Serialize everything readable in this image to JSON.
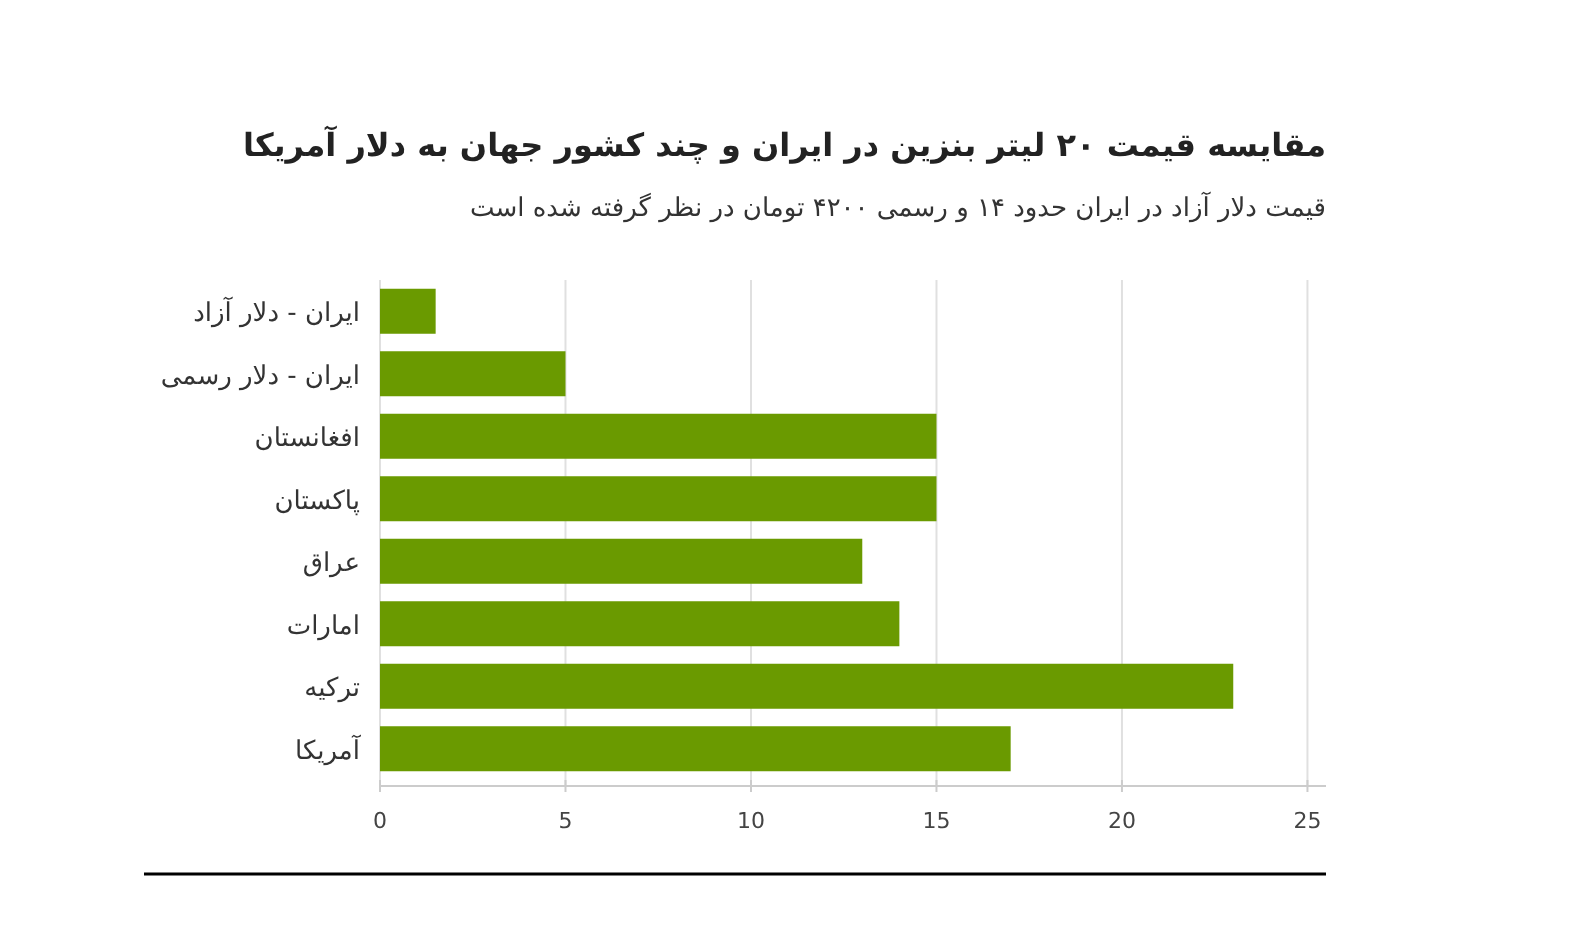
{
  "chart_data": {
    "type": "bar",
    "orientation": "horizontal",
    "title": "مقایسه قیمت ۲۰ لیتر بنزین در ایران و چند کشور جهان به دلار آمریکا",
    "subtitle": "قیمت دلار آزاد در ایران حدود ۱۴ و رسمی ۴۲۰۰ تومان در نظر گرفته شده است",
    "categories": [
      "ایران - دلار آزاد",
      "ایران - دلار رسمی",
      "افغانستان",
      "پاکستان",
      "عراق",
      "امارات",
      "ترکیه",
      "آمریکا"
    ],
    "values": [
      1.5,
      5,
      15,
      15,
      13,
      14,
      23,
      17
    ],
    "color": "#6a9a00",
    "xlim": [
      0,
      25.5
    ],
    "xticks": [
      0,
      5,
      10,
      15,
      20,
      25
    ],
    "grid": "x"
  }
}
